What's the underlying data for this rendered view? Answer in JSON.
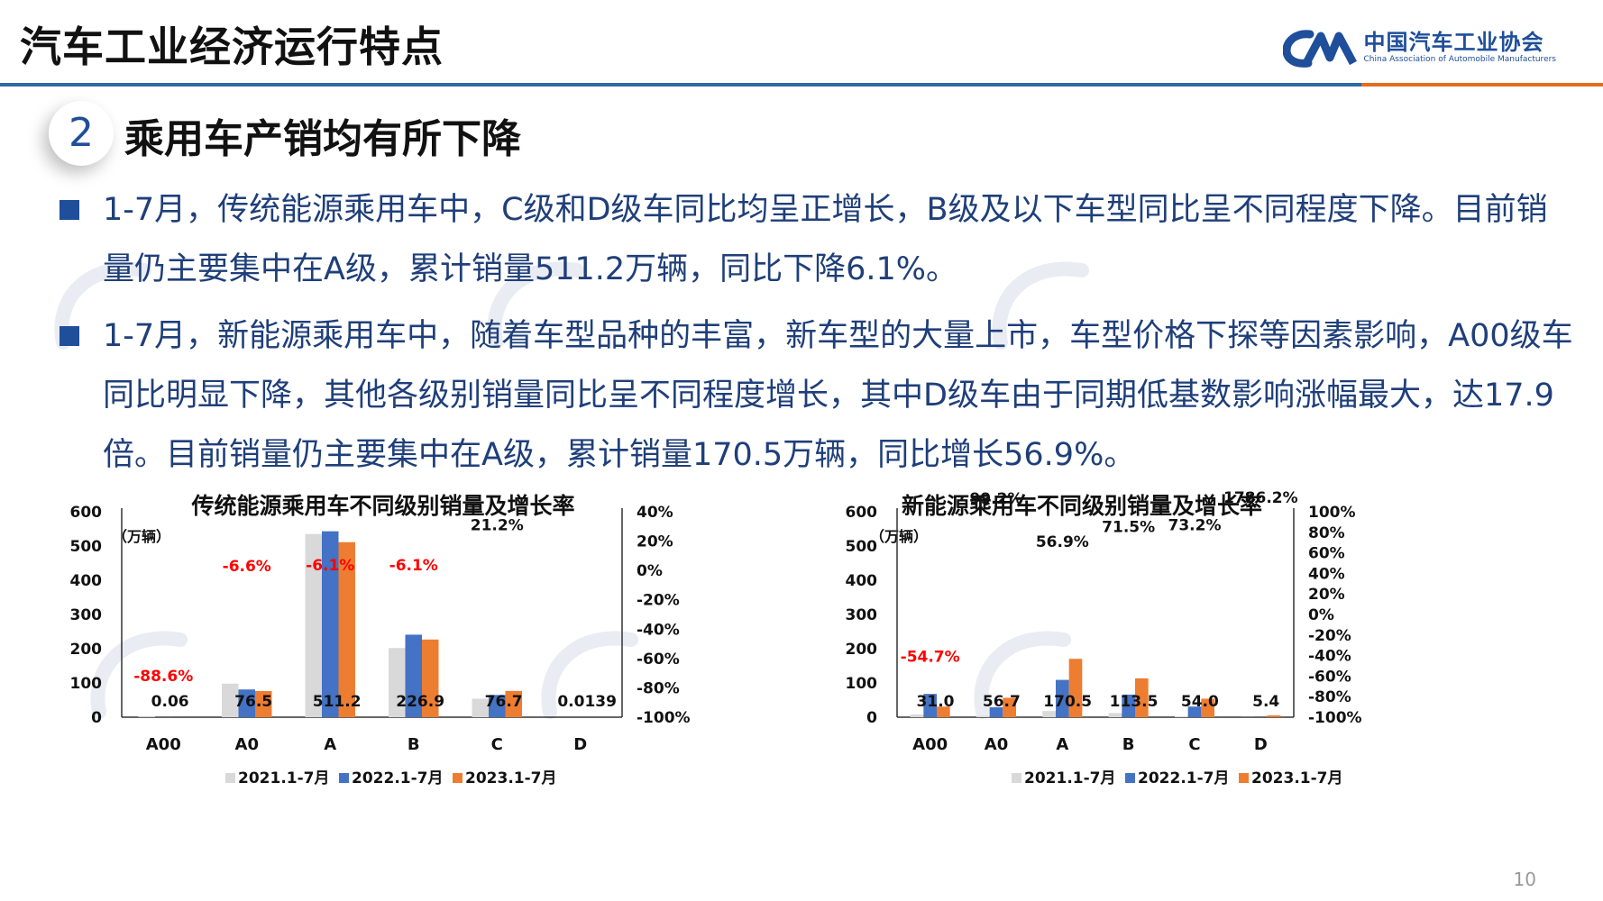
{
  "header": {
    "title": "汽车工业经济运行特点",
    "logo_cn": "中国汽车工业协会",
    "logo_en": "China Association of Automobile Manufacturers",
    "colors": {
      "blue": "#2d6aa6",
      "orange": "#e46c1d"
    }
  },
  "section": {
    "number": "2",
    "title": "乘用车产销均有所下降"
  },
  "bullets": [
    "1-7月，传统能源乘用车中，C级和D级车同比均呈正增长，B级及以下车型同比呈不同程度下降。目前销量仍主要集中在A级，累计销量511.2万辆，同比下降6.1%。",
    "1-7月，新能源乘用车中，随着车型品种的丰富，新车型的大量上市，车型价格下探等因素影响，A00级车同比明显下降，其他各级别销量同比呈不同程度增长，其中D级车由于同期低基数影响涨幅最大，达17.9倍。目前销量仍主要集中在A级，累计销量170.5万辆，同比增长56.9%。"
  ],
  "page_number": "10",
  "chart_data": [
    {
      "type": "bar",
      "title": "传统能源乘用车不同级别销量及增长率",
      "unit_label": "（万辆）",
      "categories": [
        "A00",
        "A0",
        "A",
        "B",
        "C",
        "D"
      ],
      "ylim": [
        0,
        600
      ],
      "y_ticks": [
        "0",
        "100",
        "200",
        "300",
        "400",
        "500",
        "600"
      ],
      "y2lim": [
        -100,
        40
      ],
      "y2_ticks": [
        "-100%",
        "-80%",
        "-60%",
        "-40%",
        "-20%",
        "0%",
        "20%",
        "40%"
      ],
      "series": [
        {
          "name": "2021.1-7月",
          "color": "#d9d9d9",
          "values": [
            2,
            98,
            535,
            202,
            54,
            0.02
          ]
        },
        {
          "name": "2022.1-7月",
          "color": "#4472c4",
          "values": [
            0.5,
            81,
            543,
            241,
            65,
            0.03
          ]
        },
        {
          "name": "2023.1-7月",
          "color": "#ed7d31",
          "values": [
            0.06,
            76.5,
            511.2,
            226.9,
            76.7,
            0.0139
          ]
        }
      ],
      "value_labels": [
        "0.06",
        "76.5",
        "511.2",
        "226.9",
        "76.7",
        "0.0139"
      ],
      "growth_labels": [
        {
          "category": "A00",
          "text": "-88.6%",
          "value": -88.6,
          "color": "#ff0000"
        },
        {
          "category": "A0",
          "text": "-6.6%",
          "value": -6.6,
          "color": "#ff0000"
        },
        {
          "category": "A",
          "text": "-6.1%",
          "value": -6.1,
          "color": "#ff0000"
        },
        {
          "category": "B",
          "text": "-6.1%",
          "value": -6.1,
          "color": "#ff0000"
        },
        {
          "category": "C",
          "text": "21.2%",
          "value": 21.2,
          "color": "#111111"
        }
      ],
      "legend": "bottom"
    },
    {
      "type": "bar",
      "title": "新能源乘用车不同级别销量及增长率",
      "unit_label": "（万辆）",
      "categories": [
        "A00",
        "A0",
        "A",
        "B",
        "C",
        "D"
      ],
      "ylim": [
        0,
        600
      ],
      "y_ticks": [
        "0",
        "100",
        "200",
        "300",
        "400",
        "500",
        "600"
      ],
      "y2lim": [
        -100,
        100
      ],
      "y2_ticks": [
        "-100%",
        "-80%",
        "-60%",
        "-40%",
        "-20%",
        "0%",
        "20%",
        "40%",
        "60%",
        "80%",
        "100%"
      ],
      "series": [
        {
          "name": "2021.1-7月",
          "color": "#d9d9d9",
          "values": [
            8,
            4,
            18,
            12,
            3,
            0.3
          ]
        },
        {
          "name": "2022.1-7月",
          "color": "#4472c4",
          "values": [
            68,
            29,
            109,
            66,
            31,
            0.3
          ]
        },
        {
          "name": "2023.1-7月",
          "color": "#ed7d31",
          "values": [
            31.0,
            56.7,
            170.5,
            113.5,
            54.0,
            5.4
          ]
        }
      ],
      "value_labels": [
        "31.0",
        "56.7",
        "170.5",
        "113.5",
        "54.0",
        "5.4"
      ],
      "growth_labels": [
        {
          "category": "A00",
          "text": "-54.7%",
          "value": -54.7,
          "color": "#ff0000"
        },
        {
          "category": "A0",
          "text": "99.2%",
          "value": 99.2,
          "color": "#111111"
        },
        {
          "category": "A",
          "text": "56.9%",
          "value": 56.9,
          "color": "#111111"
        },
        {
          "category": "B",
          "text": "71.5%",
          "value": 71.5,
          "color": "#111111"
        },
        {
          "category": "C",
          "text": "73.2%",
          "value": 73.2,
          "color": "#111111"
        },
        {
          "category": "D",
          "text": "1786.2%",
          "value": 1786.2,
          "color": "#111111"
        }
      ],
      "legend": "bottom"
    }
  ]
}
